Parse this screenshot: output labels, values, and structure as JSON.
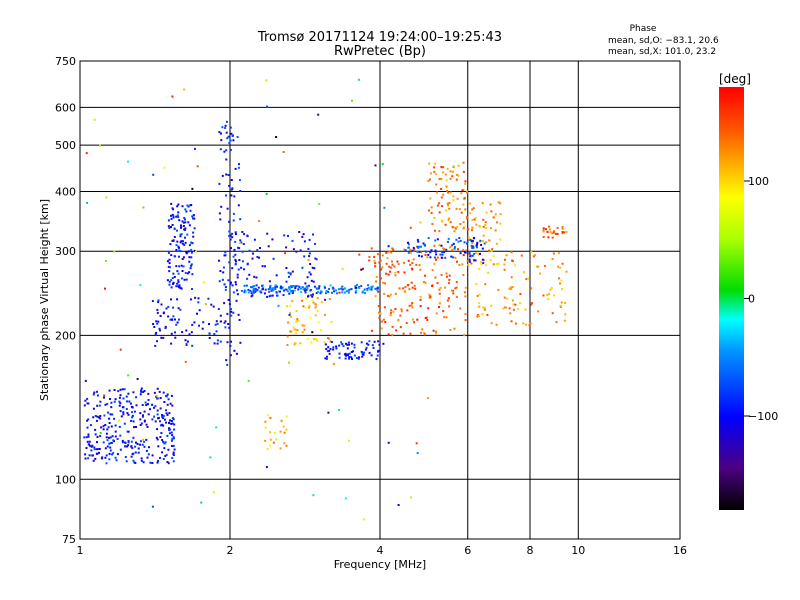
{
  "chart_data": {
    "type": "scatter",
    "title": "Tromsø 20171124 19:24:00–19:25:43",
    "subtitle": "RwPretec (Bp)",
    "xlabel": "Frequency [MHz]",
    "ylabel": "Stationary phase Virtual Height [km]",
    "x_scale": "log",
    "y_scale": "log",
    "xlim": [
      1,
      16
    ],
    "ylim": [
      75,
      750
    ],
    "x_ticks": [
      1,
      2,
      4,
      6,
      8,
      10,
      16
    ],
    "x_tick_labels": [
      "1",
      "2",
      "4",
      "6",
      "8",
      "10",
      "16"
    ],
    "y_ticks": [
      75,
      100,
      200,
      300,
      400,
      500,
      600,
      750
    ],
    "y_tick_labels": [
      "75",
      "100",
      "200",
      "300",
      "400",
      "500",
      "600",
      "750"
    ],
    "grid": true,
    "stats": {
      "heading": "Phase",
      "line_o": "mean, sd,O: −83.1, 20.6",
      "line_x": "mean, sd,X: 101.0, 23.2"
    },
    "colorbar": {
      "label": "[deg]",
      "min": -180,
      "max": 180,
      "ticks": [
        100,
        0,
        -100
      ],
      "tick_labels": [
        "100",
        "0",
        "−100"
      ]
    },
    "clusters": [
      {
        "f": [
          1.02,
          1.55
        ],
        "h": [
          108,
          155
        ],
        "phase": -100,
        "n": 320
      },
      {
        "f": [
          1.5,
          1.7
        ],
        "h": [
          250,
          380
        ],
        "phase": -95,
        "n": 140
      },
      {
        "f": [
          1.4,
          1.9
        ],
        "h": [
          190,
          240
        ],
        "phase": -100,
        "n": 80
      },
      {
        "f": [
          1.9,
          2.1
        ],
        "h": [
          170,
          560
        ],
        "phase": -95,
        "n": 110
      },
      {
        "f": [
          2.0,
          3.0
        ],
        "h": [
          240,
          330
        ],
        "phase": -100,
        "n": 110
      },
      {
        "f": [
          2.1,
          4.0
        ],
        "h": [
          245,
          255
        ],
        "phase": -60,
        "n": 160
      },
      {
        "f": [
          2.6,
          3.2
        ],
        "h": [
          190,
          240
        ],
        "phase": 110,
        "n": 60
      },
      {
        "f": [
          3.1,
          4.0
        ],
        "h": [
          178,
          195
        ],
        "phase": -95,
        "n": 70
      },
      {
        "f": [
          3.8,
          6.0
        ],
        "h": [
          200,
          310
        ],
        "phase": 140,
        "n": 200
      },
      {
        "f": [
          4.5,
          6.0
        ],
        "h": [
          290,
          320
        ],
        "phase": -80,
        "n": 60
      },
      {
        "f": [
          5.0,
          6.0
        ],
        "h": [
          330,
          460
        ],
        "phase": 130,
        "n": 90
      },
      {
        "f": [
          6.0,
          7.0
        ],
        "h": [
          280,
          380
        ],
        "phase": 120,
        "n": 60
      },
      {
        "f": [
          6.2,
          9.5
        ],
        "h": [
          210,
          300
        ],
        "phase": 125,
        "n": 100
      },
      {
        "f": [
          6.0,
          6.5
        ],
        "h": [
          280,
          320
        ],
        "phase": -90,
        "n": 30
      },
      {
        "f": [
          8.5,
          9.5
        ],
        "h": [
          320,
          340
        ],
        "phase": 140,
        "n": 25
      },
      {
        "f": [
          2.35,
          2.6
        ],
        "h": [
          115,
          138
        ],
        "phase": 110,
        "n": 20
      },
      {
        "f": [
          1.0,
          5.0
        ],
        "h": [
          80,
          700
        ],
        "phase": 0,
        "n": 90
      }
    ]
  }
}
